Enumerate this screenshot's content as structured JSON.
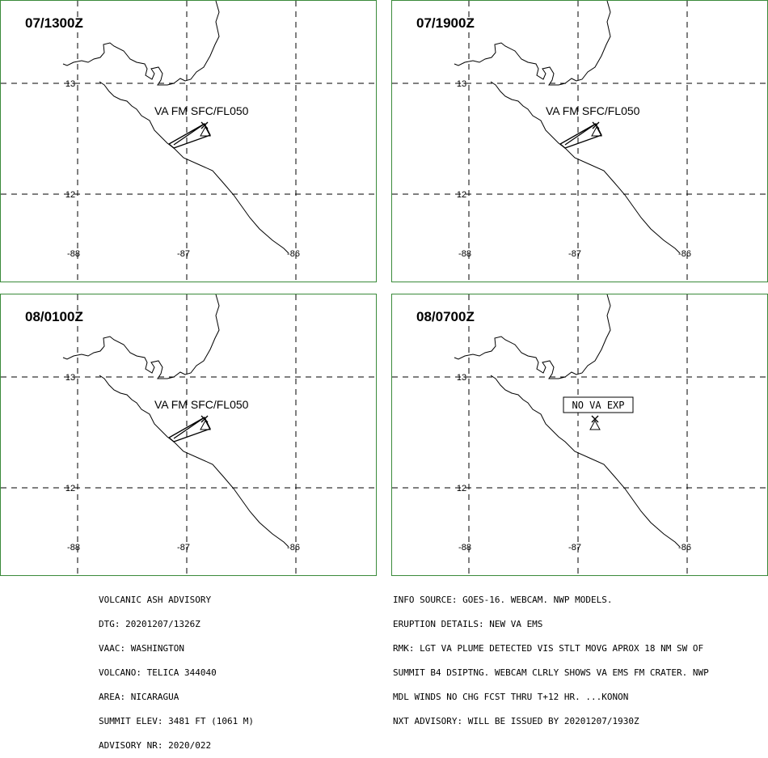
{
  "panels": [
    {
      "time": "07/1300Z",
      "label": "VA FM SFC/FL050",
      "type": "plume"
    },
    {
      "time": "07/1900Z",
      "label": "VA FM SFC/FL050",
      "type": "plume"
    },
    {
      "time": "08/0100Z",
      "label": "VA FM SFC/FL050",
      "type": "plume"
    },
    {
      "time": "08/0700Z",
      "label": "NO VA EXP",
      "type": "none"
    }
  ],
  "axes": {
    "lat_ticks": [
      "13",
      "12"
    ],
    "lon_ticks": [
      "-88",
      "-87",
      "-86"
    ]
  },
  "advisory_left": [
    "VOLCANIC ASH ADVISORY",
    "DTG: 20201207/1326Z",
    "VAAC: WASHINGTON",
    "VOLCANO: TELICA 344040",
    "AREA: NICARAGUA",
    "SUMMIT ELEV: 3481 FT (1061 M)",
    "ADVISORY NR: 2020/022"
  ],
  "advisory_right": [
    "INFO SOURCE: GOES-16. WEBCAM. NWP MODELS.",
    "ERUPTION DETAILS: NEW VA EMS",
    "RMK: LGT VA PLUME DETECTED VIS STLT MOVG APROX 18 NM SW OF",
    "SUMMIT B4 DSIPTNG. WEBCAM CLRLY SHOWS VA EMS FM CRATER. NWP",
    "MDL WINDS NO CHG FCST THRU T+12 HR. ...KONON",
    "NXT ADVISORY: WILL BE ISSUED BY 20201207/1930Z"
  ],
  "colors": {
    "border": "#3a8a3a",
    "lines": "#000000"
  }
}
